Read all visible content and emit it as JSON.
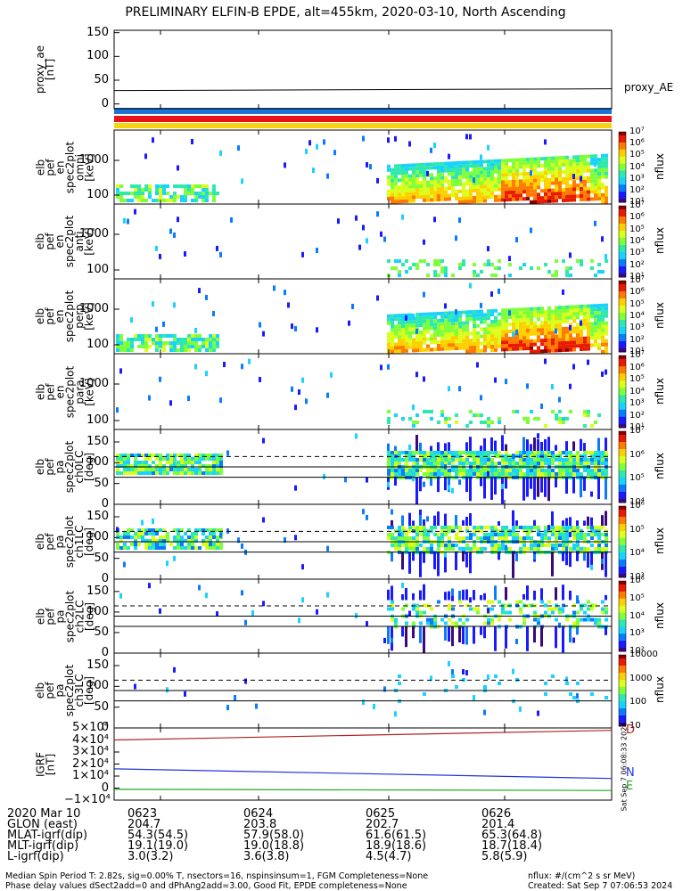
{
  "title": "PRELIMINARY ELFIN-B EPDE, alt=455km, 2020-03-10, North Ascending",
  "colors": {
    "sat_bar_blue": "#1e74d6",
    "sat_bar_red": "#e8121c",
    "sat_bar_yellow": "#f6d40e",
    "igrf_d": "#b22222",
    "igrf_n": "#2233dd",
    "igrf_e": "#22aa22"
  },
  "chart_data": [
    {
      "type": "line",
      "title": "",
      "ylabel": "proxy_ae\n[nT]",
      "ylim": [
        -10,
        155
      ],
      "yticks": [
        "150",
        "100",
        "50",
        "0"
      ],
      "legend": "proxy_AE",
      "value": 30
    },
    {
      "type": "heatmap",
      "ylabel": "elb\npef\nen\nspec2plot\nomni\n[keV]",
      "yscale": "log",
      "yticks": [
        "1000",
        "100"
      ],
      "colorbar": {
        "label": "nflux",
        "ticks": [
          "10^7",
          "10^6",
          "10^5",
          "10^4",
          "10^3",
          "10^2",
          "10^1"
        ]
      }
    },
    {
      "type": "heatmap",
      "ylabel": "elb\npef\nen\nspec2plot\nanti\n[keV]",
      "yscale": "log",
      "yticks": [
        "1000",
        "100"
      ],
      "colorbar": {
        "label": "nflux",
        "ticks": [
          "10^7",
          "10^6",
          "10^5",
          "10^4",
          "10^3",
          "10^2",
          "10^1"
        ]
      }
    },
    {
      "type": "heatmap",
      "ylabel": "elb\npef\nen\nspec2plot\nperp\n[keV]",
      "yscale": "log",
      "yticks": [
        "1000",
        "100"
      ],
      "colorbar": {
        "label": "nflux",
        "ticks": [
          "10^7",
          "10^6",
          "10^5",
          "10^4",
          "10^3",
          "10^2",
          "10^1"
        ]
      }
    },
    {
      "type": "heatmap",
      "ylabel": "elb\npef\nen\nspec2plot\npara\n[keV]",
      "yscale": "log",
      "yticks": [
        "1000",
        "100"
      ],
      "colorbar": {
        "label": "nflux",
        "ticks": [
          "10^7",
          "10^6",
          "10^5",
          "10^4",
          "10^3",
          "10^2",
          "10^1"
        ]
      }
    },
    {
      "type": "heatmap",
      "ylabel": "elb\npef\npa\nspec2plot\nch0LC\n[deg]",
      "ylim": [
        0,
        180
      ],
      "yticks": [
        "150",
        "100",
        "50",
        "0"
      ],
      "colorbar": {
        "label": "nflux",
        "ticks": [
          "10^7",
          "10^6",
          "10^5",
          "10^4"
        ]
      }
    },
    {
      "type": "heatmap",
      "ylabel": "elb\npef\npa\nspec2plot\nch1LC\n[deg]",
      "ylim": [
        0,
        180
      ],
      "yticks": [
        "150",
        "100",
        "50",
        "0"
      ],
      "colorbar": {
        "label": "nflux",
        "ticks": [
          "10^6",
          "10^5",
          "10^4",
          "10^3"
        ]
      }
    },
    {
      "type": "heatmap",
      "ylabel": "elb\npef\npa\nspec2plot\nch2LC\n[deg]",
      "ylim": [
        0,
        180
      ],
      "yticks": [
        "150",
        "100",
        "50",
        "0"
      ],
      "colorbar": {
        "label": "nflux",
        "ticks": [
          "10^6",
          "10^5",
          "10^4",
          "10^3",
          "10^2"
        ]
      }
    },
    {
      "type": "heatmap",
      "ylabel": "elb\npef\npa\nspec2plot\nch3LC\n[deg]",
      "ylim": [
        0,
        180
      ],
      "yticks": [
        "150",
        "100",
        "50",
        "0"
      ],
      "colorbar": {
        "label": "nflux",
        "ticks": [
          "10000",
          "1000",
          "100",
          "10"
        ]
      }
    },
    {
      "type": "line",
      "ylabel": "IGRF\n[nT]",
      "ylim": [
        -10000,
        50000
      ],
      "yticks": [
        "5×10⁴",
        "4×10⁴",
        "3×10⁴",
        "2×10⁴",
        "1×10⁴",
        "0",
        "−1×10⁴"
      ],
      "series": [
        {
          "name": "D",
          "values": [
            40000,
            48000
          ]
        },
        {
          "name": "N",
          "values": [
            16000,
            8000
          ]
        },
        {
          "name": "E",
          "values": [
            -1000,
            -2000
          ]
        }
      ]
    }
  ],
  "xaxis": {
    "ticks": [
      "0623",
      "0624",
      "0625",
      "0626"
    ],
    "rows": [
      {
        "label": "2020 Mar 10",
        "values": [
          "0623",
          "0624",
          "0625",
          "0626"
        ]
      },
      {
        "label": "GLON (east)",
        "values": [
          "204.7",
          "203.8",
          "202.7",
          "201.4"
        ]
      },
      {
        "label": "MLAT-igrf(dip)",
        "values": [
          "54.3(54.5)",
          "57.9(58.0)",
          "61.6(61.5)",
          "65.3(64.8)"
        ]
      },
      {
        "label": "MLT-igrf(dip)",
        "values": [
          "19.1(19.0)",
          "19.0(18.8)",
          "18.9(18.6)",
          "18.7(18.4)"
        ]
      },
      {
        "label": "L-igrf(dip)",
        "values": [
          "3.0(3.2)",
          "3.6(3.8)",
          "4.5(4.7)",
          "5.8(5.9)"
        ]
      }
    ]
  },
  "notes": {
    "line1": "Median Spin Period T: 2.82s, sig=0.00% T, nsectors=16, nspinsinsum=1, FGM Completeness=None",
    "line2": "Phase delay values dSect2add=0 and dPhAng2add=3.00, Good Fit, EPDE completeness=None",
    "units": "nflux: #/(cm^2 s sr MeV)",
    "created": "Created: Sat Sep  7 07:06:53 2024",
    "stamp": "Sat Sep  7 06:08:33 2024"
  }
}
